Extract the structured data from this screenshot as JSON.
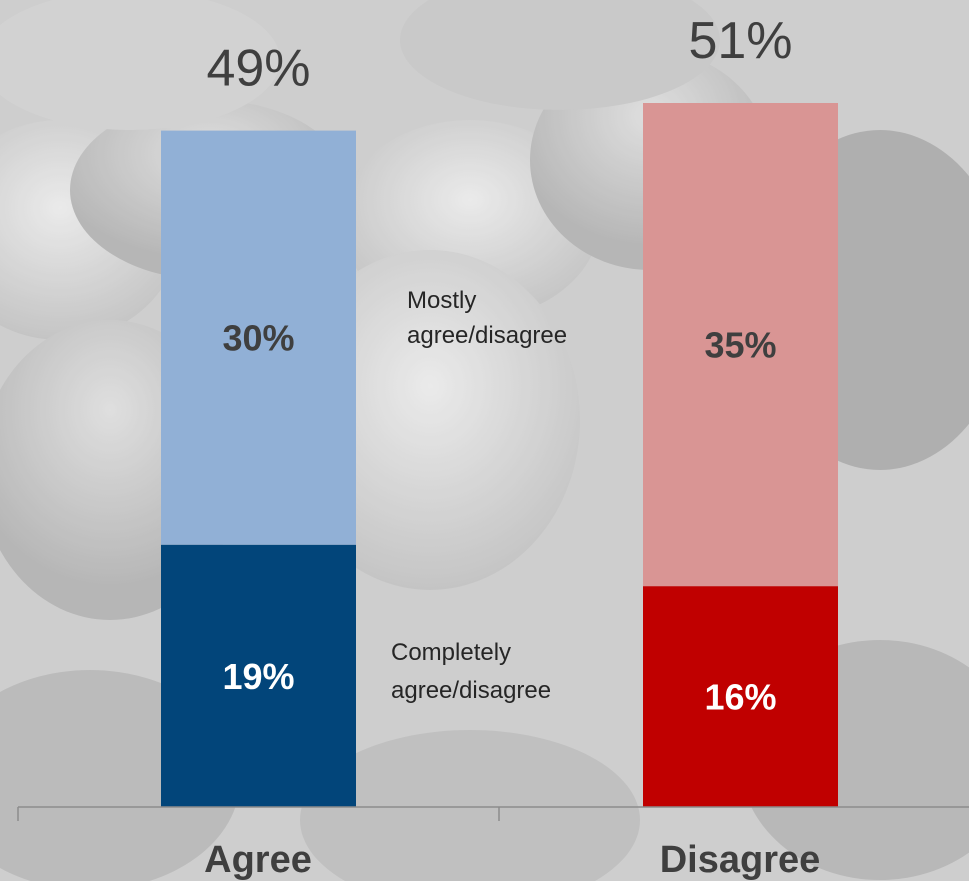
{
  "chart_data": {
    "type": "bar",
    "stacked": true,
    "categories": [
      "Agree",
      "Disagree"
    ],
    "totals": [
      "49%",
      "51%"
    ],
    "series": [
      {
        "name": "Completely agree/disagree",
        "values": [
          19,
          16
        ],
        "labels": [
          "19%",
          "16%"
        ],
        "colors": [
          "#02457a",
          "#c00000"
        ]
      },
      {
        "name": "Mostly agree/disagree",
        "values": [
          30,
          35
        ],
        "labels": [
          "30%",
          "35%"
        ],
        "colors": [
          "#91b0d6",
          "#d99594"
        ]
      }
    ],
    "legend": {
      "mostly": [
        "Mostly",
        "agree/disagree"
      ],
      "completely": [
        "Completely",
        "agree/disagree"
      ]
    },
    "ylim": [
      0,
      51
    ],
    "grid": false,
    "axis_color": "#8c8c8c",
    "label_colors": {
      "completely": "#ffffff",
      "mostly": "#3f3f3f"
    }
  }
}
